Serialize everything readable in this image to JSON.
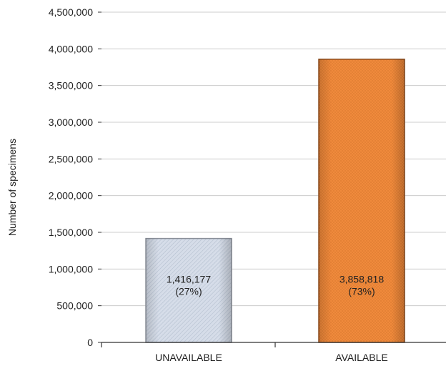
{
  "chart_data": {
    "type": "bar",
    "categories": [
      "UNAVAILABLE",
      "AVAILABLE"
    ],
    "values": [
      1416177,
      3858818
    ],
    "data_labels": [
      {
        "value": "1,416,177",
        "percent": "(27%)"
      },
      {
        "value": "3,858,818",
        "percent": "(73%)"
      }
    ],
    "ylabel": "Number of specimens",
    "xlabel": "",
    "ylim": [
      0,
      4500000
    ],
    "y_ticks": [
      0,
      500000,
      1000000,
      1500000,
      2000000,
      2500000,
      3000000,
      3500000,
      4000000,
      4500000
    ],
    "y_tick_labels": [
      "0",
      "500,000",
      "1,000,000",
      "1,500,000",
      "2,000,000",
      "2,500,000",
      "3,000,000",
      "3,500,000",
      "4,000,000",
      "4,500,000"
    ],
    "grid": true,
    "legend": "none",
    "colors": {
      "UNAVAILABLE": "#cdd6e4",
      "AVAILABLE": "#f08a3c",
      "gridline": "#cccccc",
      "axis": "#333333"
    }
  }
}
